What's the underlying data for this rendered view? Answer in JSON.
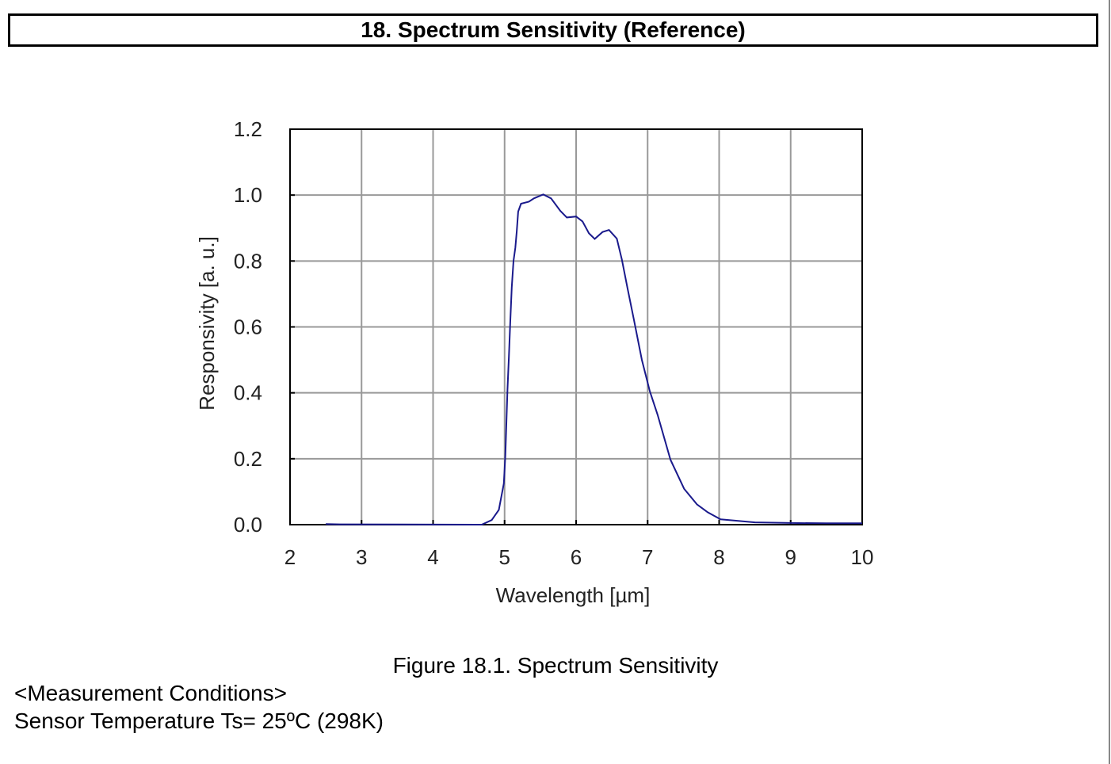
{
  "section_title": "18.  Spectrum  Sensitivity  (Reference)",
  "figure_caption": "Figure 18.1. Spectrum Sensitivity",
  "conditions": {
    "heading": "<Measurement Conditions>",
    "line1": "Sensor Temperature Ts= 25ºC (298K)"
  },
  "chart_data": {
    "type": "line",
    "title": "",
    "xlabel": "Wavelength [µm]",
    "ylabel": "Responsivity [a. u.]",
    "xlim": [
      2,
      10
    ],
    "ylim": [
      0,
      1.2
    ],
    "xticks": [
      "2",
      "3",
      "4",
      "5",
      "6",
      "7",
      "8",
      "9",
      "10"
    ],
    "yticks": [
      "0.0",
      "0.2",
      "0.4",
      "0.6",
      "0.8",
      "1.0",
      "1.2"
    ],
    "grid": true,
    "line_color": "#1a1a8c",
    "series": [
      {
        "x": [
          2.5,
          2.7,
          4.6,
          4.68,
          4.82,
          4.92,
          4.99,
          5.01,
          5.04,
          5.06,
          5.08,
          5.1,
          5.125,
          5.15,
          5.17,
          5.19,
          5.23,
          5.34,
          5.41,
          5.54,
          5.65,
          5.78,
          5.87,
          6.0,
          6.09,
          6.18,
          6.26,
          6.37,
          6.46,
          6.57,
          6.64,
          6.72,
          6.81,
          6.92,
          7.03,
          7.14,
          7.32,
          7.51,
          7.69,
          7.84,
          8.02,
          8.5,
          9.0,
          9.5,
          10.0
        ],
        "y": [
          0.002,
          0.001,
          0.0,
          0.0,
          0.014,
          0.045,
          0.125,
          0.21,
          0.41,
          0.51,
          0.62,
          0.72,
          0.8,
          0.84,
          0.89,
          0.95,
          0.974,
          0.98,
          0.99,
          1.002,
          0.99,
          0.952,
          0.932,
          0.935,
          0.92,
          0.884,
          0.867,
          0.888,
          0.894,
          0.868,
          0.804,
          0.716,
          0.62,
          0.5,
          0.405,
          0.333,
          0.197,
          0.109,
          0.0615,
          0.0375,
          0.016,
          0.007,
          0.005,
          0.004,
          0.004
        ]
      }
    ]
  }
}
